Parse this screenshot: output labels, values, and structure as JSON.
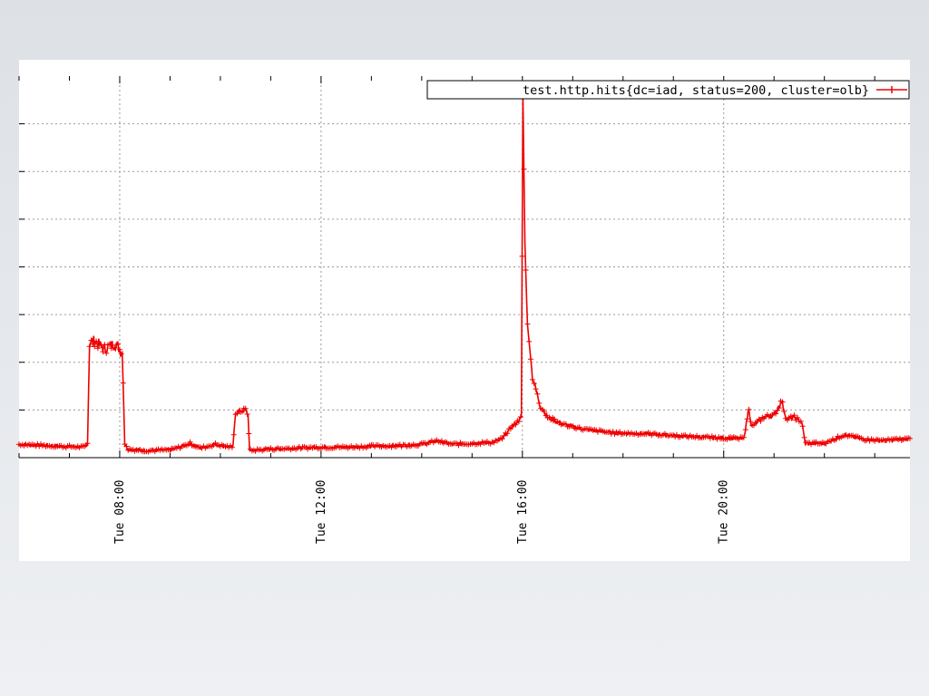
{
  "chart_data": {
    "type": "line",
    "title": "",
    "xlabel": "",
    "ylabel": "",
    "x_tick_labels": [
      "Tue 08:00",
      "Tue 12:00",
      "Tue 16:00",
      "Tue 20:00"
    ],
    "x_tick_hours": [
      8,
      12,
      16,
      20
    ],
    "xlim_hours": [
      6.0,
      23.7
    ],
    "ylim": [
      0,
      800
    ],
    "y_tick_labels_shown": false,
    "grid": true,
    "legend_position": "top-right",
    "series": [
      {
        "name": "test.http.hits{dc=iad, status=200, cluster=olb}",
        "color": "#ee0000",
        "marker": "plus",
        "points": [
          [
            6.0,
            28
          ],
          [
            6.8,
            24
          ],
          [
            7.3,
            22
          ],
          [
            7.36,
            30
          ],
          [
            7.4,
            240
          ],
          [
            7.5,
            245
          ],
          [
            7.7,
            228
          ],
          [
            7.9,
            240
          ],
          [
            8.05,
            220
          ],
          [
            8.1,
            30
          ],
          [
            8.15,
            18
          ],
          [
            8.5,
            15
          ],
          [
            9.0,
            16
          ],
          [
            9.2,
            22
          ],
          [
            9.4,
            30
          ],
          [
            9.6,
            20
          ],
          [
            9.9,
            28
          ],
          [
            10.1,
            24
          ],
          [
            10.25,
            22
          ],
          [
            10.3,
            95
          ],
          [
            10.5,
            100
          ],
          [
            10.55,
            90
          ],
          [
            10.58,
            15
          ],
          [
            11.0,
            18
          ],
          [
            11.5,
            20
          ],
          [
            12.0,
            22
          ],
          [
            12.5,
            22
          ],
          [
            13.0,
            24
          ],
          [
            13.5,
            25
          ],
          [
            14.0,
            28
          ],
          [
            14.3,
            35
          ],
          [
            14.6,
            28
          ],
          [
            15.0,
            30
          ],
          [
            15.4,
            32
          ],
          [
            15.6,
            40
          ],
          [
            15.75,
            60
          ],
          [
            15.9,
            75
          ],
          [
            15.98,
            85
          ],
          [
            16.01,
            760
          ],
          [
            16.05,
            450
          ],
          [
            16.1,
            280
          ],
          [
            16.2,
            170
          ],
          [
            16.35,
            110
          ],
          [
            16.5,
            85
          ],
          [
            16.8,
            70
          ],
          [
            17.2,
            60
          ],
          [
            17.8,
            52
          ],
          [
            18.5,
            50
          ],
          [
            19.2,
            45
          ],
          [
            19.8,
            42
          ],
          [
            20.4,
            40
          ],
          [
            20.5,
            105
          ],
          [
            20.55,
            65
          ],
          [
            20.8,
            85
          ],
          [
            21.0,
            90
          ],
          [
            21.15,
            118
          ],
          [
            21.25,
            80
          ],
          [
            21.4,
            85
          ],
          [
            21.55,
            75
          ],
          [
            21.62,
            30
          ],
          [
            22.0,
            30
          ],
          [
            22.4,
            48
          ],
          [
            22.8,
            38
          ],
          [
            23.2,
            36
          ],
          [
            23.7,
            40
          ]
        ]
      }
    ]
  }
}
